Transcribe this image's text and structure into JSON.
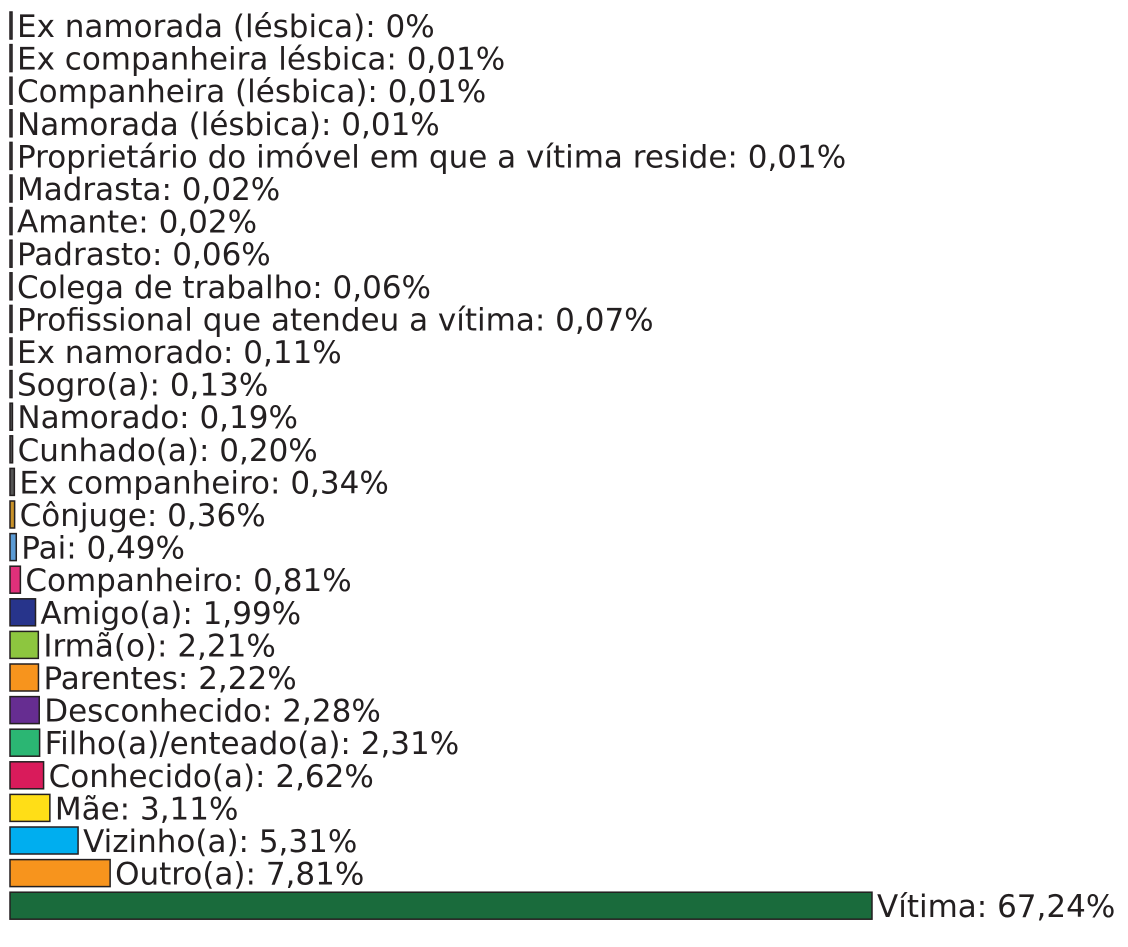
{
  "chart_data": {
    "type": "hbar",
    "values": [
      0,
      0.01,
      0.01,
      0.01,
      0.01,
      0.02,
      0.02,
      0.06,
      0.06,
      0.07,
      0.11,
      0.13,
      0.19,
      0.2,
      0.34,
      0.36,
      0.49,
      0.81,
      1.99,
      2.21,
      2.22,
      2.28,
      2.31,
      2.62,
      3.11,
      5.31,
      7.81,
      67.24
    ],
    "value_labels": [
      "Ex namorada (lésbica): 0%",
      "Ex companheira lésbica: 0,01%",
      "Companheira (lésbica): 0,01%",
      "Namorada (lésbica): 0,01%",
      "Proprietário do imóvel em que a vítima reside: 0,01%",
      "Madrasta: 0,02%",
      "Amante: 0,02%",
      "Padrasto: 0,06%",
      "Colega de trabalho: 0,06%",
      "Profissional que atendeu a vítima: 0,07%",
      "Ex namorado: 0,11%",
      "Sogro(a): 0,13%",
      "Namorado: 0,19%",
      "Cunhado(a): 0,20%",
      "Ex companheiro: 0,34%",
      "Cônjuge: 0,36%",
      "Pai: 0,49%",
      "Companheiro: 0,81%",
      "Amigo(a): 1,99%",
      "Irmã(o): 2,21%",
      "Parentes: 2,22%",
      "Desconhecido: 2,28%",
      "Filho(a)/enteado(a): 2,31%",
      "Conhecido(a): 2,62%",
      "Mãe: 3,11%",
      "Vizinho(a): 5,31%",
      "Outro(a): 7,81%",
      "Vítima: 67,24%"
    ],
    "colors": [
      "#555555",
      "#555555",
      "#555555",
      "#555555",
      "#555555",
      "#555555",
      "#555555",
      "#555555",
      "#555555",
      "#555555",
      "#555555",
      "#555555",
      "#555555",
      "#555555",
      "#555555",
      "#c8922a",
      "#5b9bd5",
      "#e0307a",
      "#27348b",
      "#8dc63f",
      "#f7941d",
      "#662d91",
      "#2bb673",
      "#d91b5b",
      "#ffde17",
      "#00aeef",
      "#f7941d",
      "#1a6b3c"
    ]
  }
}
